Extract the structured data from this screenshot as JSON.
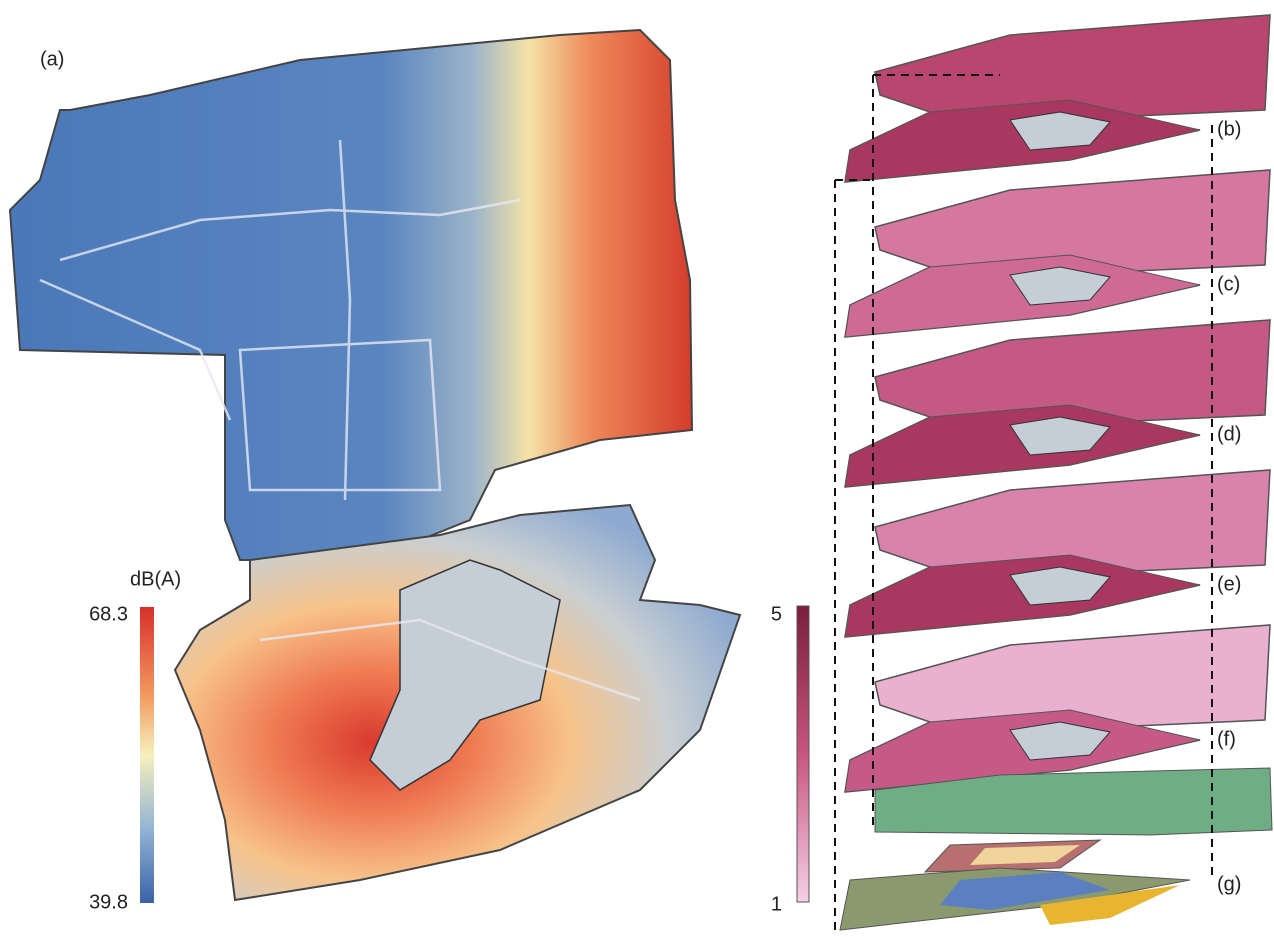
{
  "panel_a": {
    "label": "(a)",
    "colorbar": {
      "title": "dB(A)",
      "max": "68.3",
      "min": "39.8"
    }
  },
  "colorbar_layers": {
    "max": "5",
    "min": "1"
  },
  "layers": [
    "(b)",
    "(c)",
    "(d)",
    "(e)",
    "(f)",
    "(g)"
  ]
}
